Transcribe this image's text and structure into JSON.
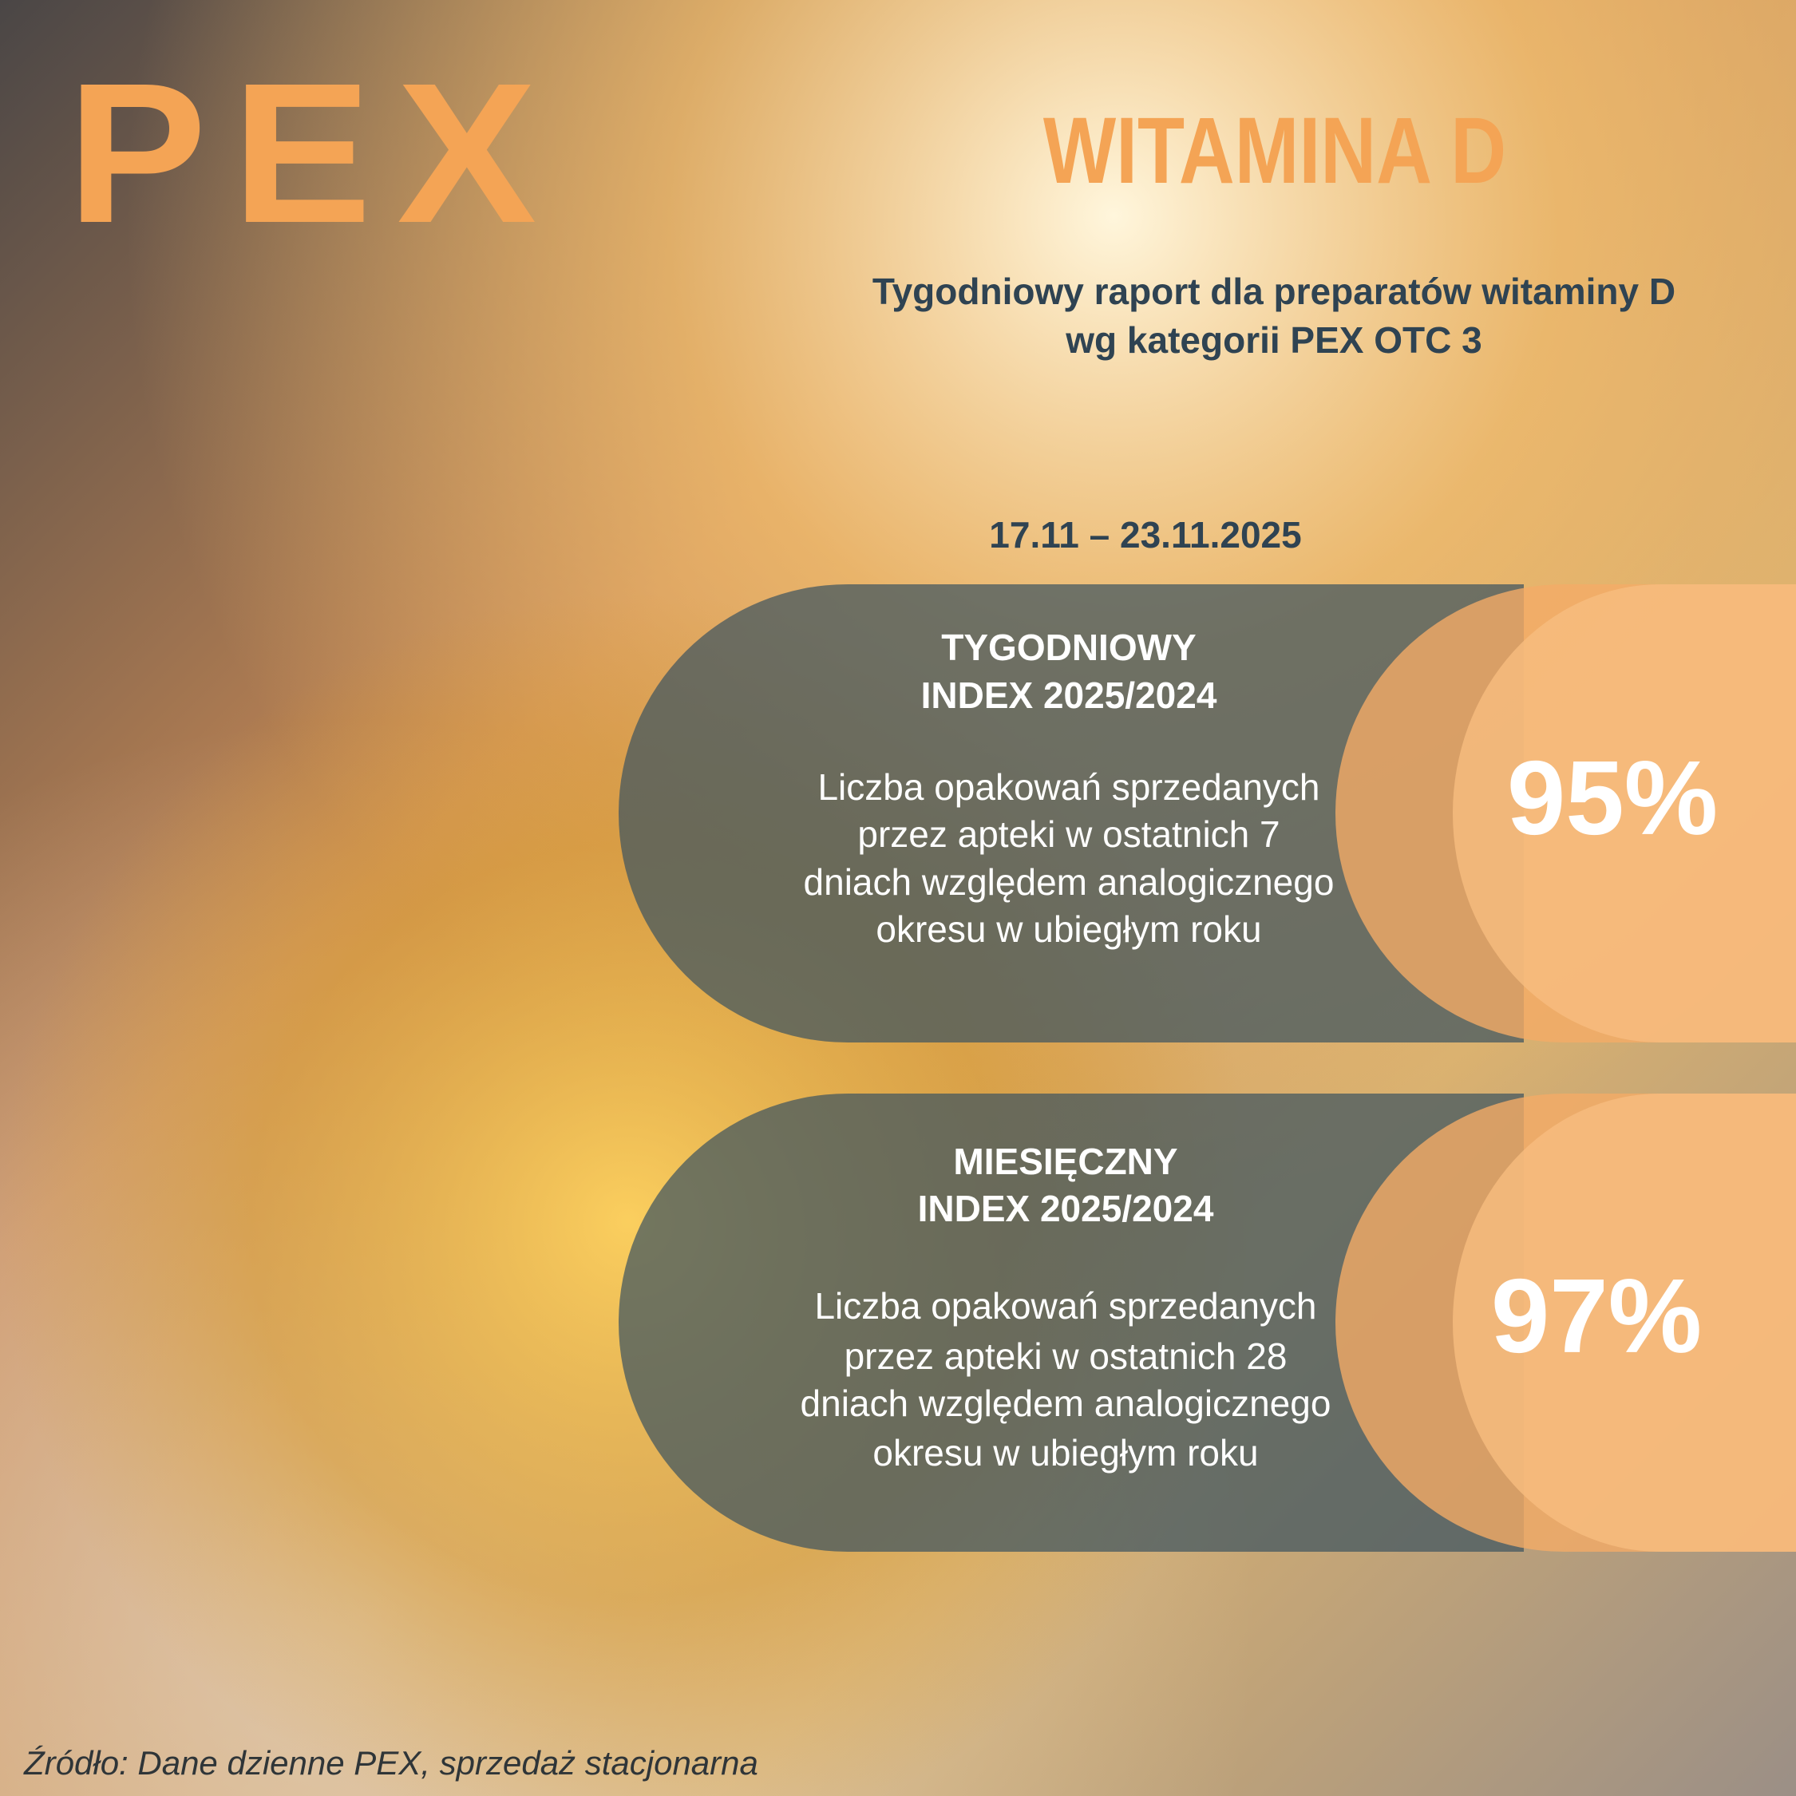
{
  "logo": "PEX",
  "header": {
    "title": "WITAMINA D",
    "subtitle": [
      "Tygodniowy raport dla preparatów witaminy D",
      "wg kategorii PEX OTC 3"
    ],
    "period": "17.11 – 23.11.2025"
  },
  "cards": [
    {
      "heading": [
        "TYGODNIOWY",
        "INDEX 2025/2024"
      ],
      "description": [
        "Liczba opakowań sprzedanych",
        "przez apteki w ostatnich 7",
        "dniach względem analogicznego",
        "okresu w ubiegłym roku"
      ],
      "value": "95%"
    },
    {
      "heading": [
        "MIESIĘCZNY",
        "INDEX 2025/2024"
      ],
      "description": [
        "Liczba opakowań sprzedanych",
        "przez apteki w ostatnich 28",
        "dniach względem analogicznego",
        "okresu w ubiegłym roku"
      ],
      "value": "97%"
    }
  ],
  "footer": {
    "source": "Źródło: Dane dzienne PEX, sprzedaż stacjonarna"
  }
}
